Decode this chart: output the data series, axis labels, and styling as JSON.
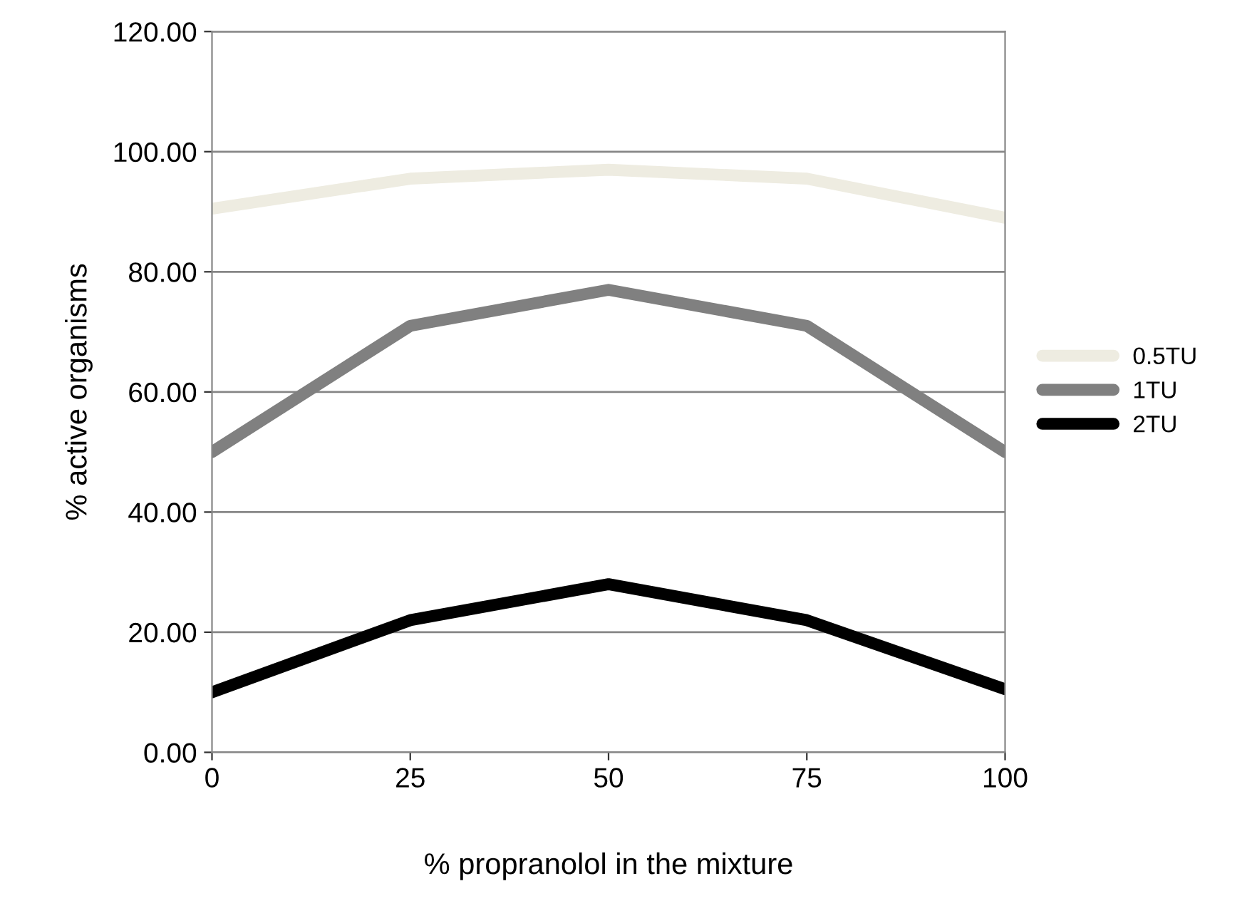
{
  "chart_data": {
    "type": "line",
    "xlabel": "% propranolol in the mixture",
    "ylabel": "% active organisms",
    "categories": [
      "0",
      "25",
      "50",
      "75",
      "100"
    ],
    "series": [
      {
        "name": "0.5TU",
        "color": "#eeece1",
        "values": [
          90.5,
          95.5,
          97,
          95.5,
          89
        ]
      },
      {
        "name": "1TU",
        "color": "#808080",
        "values": [
          50,
          71,
          77,
          71,
          50
        ]
      },
      {
        "name": "2TU",
        "color": "#000000",
        "values": [
          10,
          22,
          28,
          22,
          10.5
        ]
      }
    ],
    "ylim": [
      0,
      120
    ],
    "yticks": [
      {
        "value": 0,
        "label": "0.00"
      },
      {
        "value": 20,
        "label": "20.00"
      },
      {
        "value": 40,
        "label": "40.00"
      },
      {
        "value": 60,
        "label": "60.00"
      },
      {
        "value": 80,
        "label": "80.00"
      },
      {
        "value": 100,
        "label": "100.00"
      },
      {
        "value": 120,
        "label": "120.00"
      }
    ],
    "grid": "y",
    "legend": "right",
    "marker": "none",
    "line_style": "solid"
  }
}
